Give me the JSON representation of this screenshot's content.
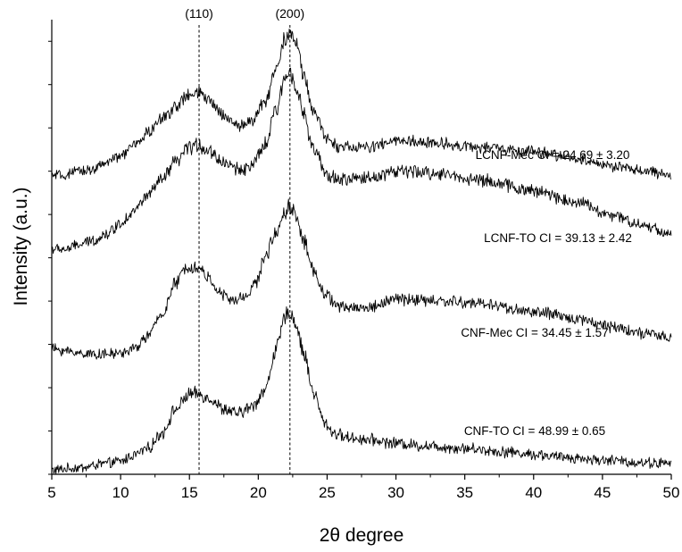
{
  "chart_data": {
    "type": "line",
    "title": "",
    "xlabel": "2θ degree",
    "ylabel": "Intensity (a.u.)",
    "xlim": [
      5,
      50
    ],
    "ylim": [
      0,
      10.5
    ],
    "x_ticks": [
      5,
      10,
      15,
      20,
      25,
      30,
      35,
      40,
      45,
      50
    ],
    "y_ticks_labeled": false,
    "grid": false,
    "legend": "none",
    "reference_lines": [
      {
        "x": 15.7,
        "label": "(110)"
      },
      {
        "x": 22.3,
        "label": "(200)"
      }
    ],
    "series": [
      {
        "name": "CNF-TO",
        "annotation": "CNF-TO  CI = 48.99 ± 0.65",
        "x": [
          5,
          7,
          9,
          10,
          11,
          12,
          13,
          14,
          15,
          15.7,
          16.5,
          17.5,
          18.5,
          19.5,
          20.5,
          21.3,
          22.0,
          22.3,
          22.7,
          23.3,
          24.0,
          24.8,
          25.5,
          26.5,
          28,
          30,
          32,
          35,
          38,
          40,
          42,
          45,
          48,
          50
        ],
        "y": [
          0.1,
          0.15,
          0.25,
          0.3,
          0.45,
          0.6,
          0.95,
          1.5,
          1.85,
          1.85,
          1.75,
          1.5,
          1.4,
          1.55,
          1.95,
          2.9,
          3.65,
          3.75,
          3.5,
          2.8,
          1.9,
          1.2,
          0.95,
          0.85,
          0.8,
          0.72,
          0.66,
          0.6,
          0.52,
          0.46,
          0.4,
          0.33,
          0.27,
          0.25
        ]
      },
      {
        "name": "CNF-Mec",
        "annotation": "CNF-Mec  CI = 34.45 ± 1.57",
        "x": [
          5,
          6,
          7,
          8,
          9,
          10,
          11,
          12,
          13,
          14,
          14.8,
          15.7,
          16.5,
          17.3,
          18.2,
          19.0,
          19.8,
          20.6,
          21.3,
          22.0,
          22.3,
          22.7,
          23.3,
          24.0,
          25.0,
          26.0,
          28,
          30,
          33,
          36,
          40,
          43,
          46,
          48,
          50
        ],
        "y": [
          2.9,
          2.85,
          2.8,
          2.78,
          2.77,
          2.8,
          2.9,
          3.2,
          3.7,
          4.4,
          4.8,
          4.75,
          4.5,
          4.15,
          4.0,
          4.1,
          4.4,
          5.1,
          5.6,
          6.1,
          6.2,
          6.0,
          5.4,
          4.7,
          4.1,
          3.85,
          3.85,
          4.05,
          4.0,
          3.95,
          3.75,
          3.6,
          3.4,
          3.25,
          3.15
        ]
      },
      {
        "name": "LCNF-TO",
        "annotation": "LCNF-TO  CI = 39.13 ± 2.42",
        "x": [
          5,
          6,
          7,
          8,
          9,
          10,
          11,
          12,
          13,
          14,
          15,
          15.7,
          16.5,
          17.5,
          18.5,
          19.5,
          20.5,
          21.3,
          22.0,
          22.3,
          22.7,
          23.3,
          24.0,
          25.0,
          26.0,
          28,
          30,
          33,
          36,
          40,
          43,
          46,
          48,
          50
        ],
        "y": [
          5.2,
          5.2,
          5.3,
          5.4,
          5.55,
          5.8,
          6.1,
          6.45,
          6.8,
          7.2,
          7.55,
          7.6,
          7.45,
          7.2,
          7.05,
          7.1,
          7.6,
          8.4,
          9.2,
          9.3,
          9.05,
          8.3,
          7.5,
          6.9,
          6.8,
          6.85,
          7.0,
          6.95,
          6.8,
          6.55,
          6.3,
          5.95,
          5.75,
          5.55
        ]
      },
      {
        "name": "LCNF-Mec",
        "annotation": "LCNF-Mec  CI = 24.69 ± 3.20",
        "x": [
          5,
          6,
          7,
          8,
          9,
          10,
          11,
          12,
          13,
          14,
          15,
          15.7,
          16.5,
          17.5,
          18.5,
          19.5,
          20.5,
          21.3,
          22.0,
          22.3,
          22.7,
          23.3,
          24.0,
          25.0,
          26.0,
          28,
          30,
          33,
          36,
          40,
          43,
          46,
          48,
          50
        ],
        "y": [
          6.9,
          6.9,
          7.0,
          7.05,
          7.2,
          7.35,
          7.6,
          7.9,
          8.2,
          8.5,
          8.75,
          8.8,
          8.6,
          8.3,
          8.05,
          8.15,
          8.6,
          9.4,
          10.1,
          10.25,
          10.0,
          9.2,
          8.4,
          7.75,
          7.55,
          7.55,
          7.7,
          7.65,
          7.55,
          7.45,
          7.3,
          7.1,
          7.0,
          6.9
        ]
      }
    ]
  }
}
